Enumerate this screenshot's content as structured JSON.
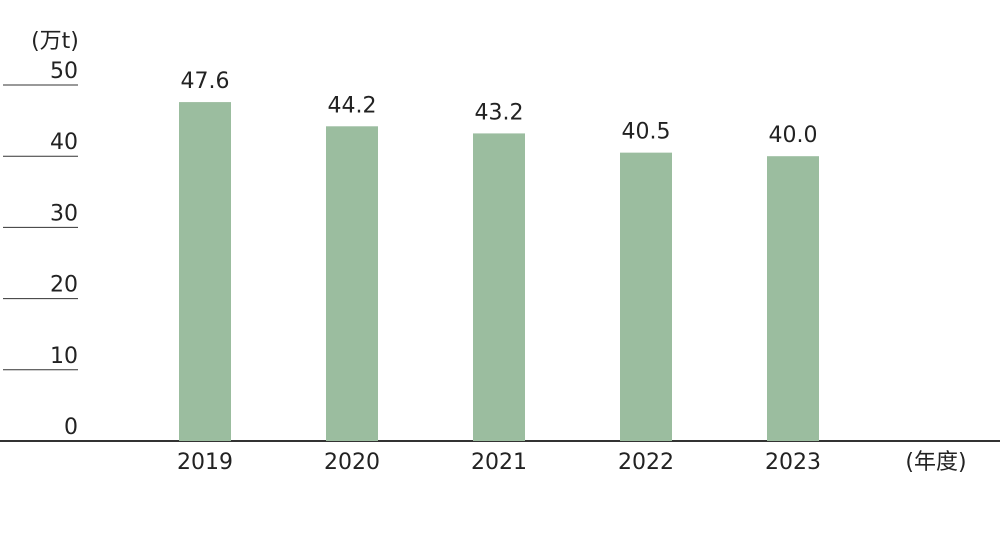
{
  "chart_data": {
    "type": "bar",
    "y_label": "(万t)",
    "x_label": "(年度)",
    "categories": [
      "2019",
      "2020",
      "2021",
      "2022",
      "2023"
    ],
    "values": [
      47.6,
      44.2,
      43.2,
      40.5,
      40.0
    ],
    "value_labels": [
      "47.6",
      "44.2",
      "43.2",
      "40.5",
      "40.0"
    ],
    "color": "#9bbd9f",
    "ylim": [
      0,
      50
    ],
    "yticks": [
      0,
      10,
      20,
      30,
      40,
      50
    ],
    "grid": false
  }
}
